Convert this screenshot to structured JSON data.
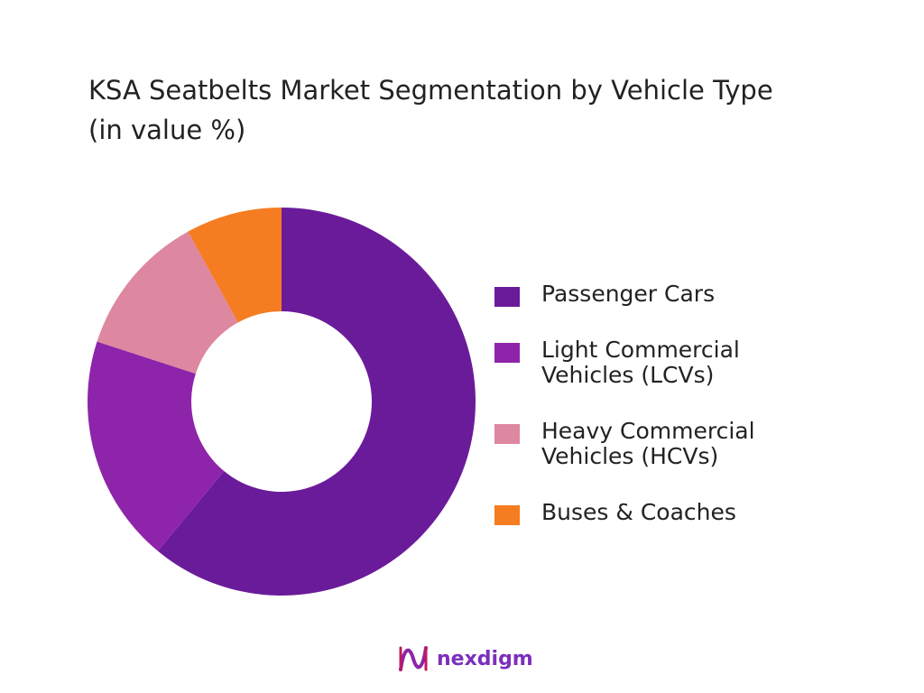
{
  "title_line1": "KSA Seatbelts Market Segmentation by Vehicle Type",
  "title_line2": "(in value %)",
  "chart_data": {
    "type": "pie",
    "donut": true,
    "title": "KSA Seatbelts Market Segmentation by Vehicle Type (in value %)",
    "categories": [
      "Passenger Cars",
      "Light Commercial Vehicles (LCVs)",
      "Heavy Commercial Vehicles (HCVs)",
      "Buses & Coaches"
    ],
    "values": [
      61,
      19,
      12,
      8
    ],
    "colors": [
      "#6A1B9A",
      "#8E24AA",
      "#DE87A0",
      "#F57C20"
    ],
    "legend_position": "right"
  },
  "legend": [
    {
      "line1": "Passenger Cars",
      "line2": ""
    },
    {
      "line1": "Light Commercial",
      "line2": "Vehicles (LCVs)"
    },
    {
      "line1": "Heavy Commercial",
      "line2": "Vehicles (HCVs)"
    },
    {
      "line1": "Buses & Coaches",
      "line2": ""
    }
  ],
  "logo": {
    "text": "nexdigm"
  }
}
